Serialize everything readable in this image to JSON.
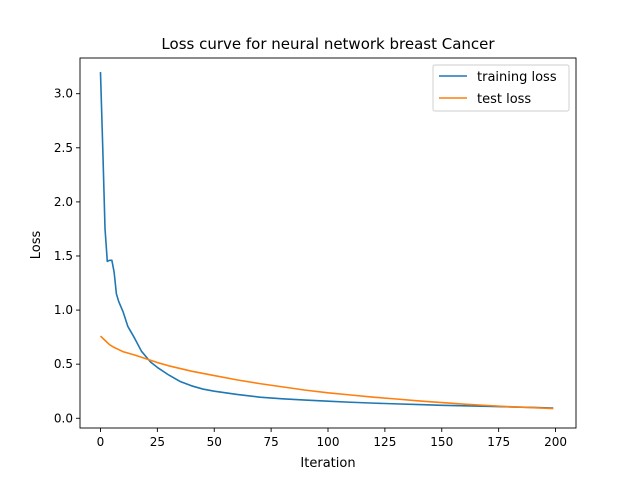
{
  "chart_data": {
    "type": "line",
    "title": "Loss curve for neural network breast Cancer",
    "xlabel": "Iteration",
    "ylabel": "Loss",
    "xlim": [
      -9,
      209
    ],
    "ylim": [
      -0.09,
      3.33
    ],
    "xticks": [
      0,
      25,
      50,
      75,
      100,
      125,
      150,
      175,
      200
    ],
    "yticks": [
      0.0,
      0.5,
      1.0,
      1.5,
      2.0,
      2.5,
      3.0
    ],
    "grid": false,
    "legend_position": "top-right",
    "series": [
      {
        "name": "training loss",
        "color": "#1f77b4",
        "x": [
          0,
          1,
          2,
          3,
          4,
          5,
          6,
          7,
          8,
          10,
          12,
          15,
          18,
          20,
          22,
          25,
          30,
          35,
          40,
          45,
          50,
          60,
          70,
          80,
          90,
          100,
          110,
          120,
          130,
          140,
          150,
          160,
          170,
          180,
          190,
          199
        ],
        "y": [
          3.2,
          2.5,
          1.75,
          1.45,
          1.46,
          1.46,
          1.35,
          1.15,
          1.08,
          0.98,
          0.85,
          0.74,
          0.62,
          0.57,
          0.52,
          0.47,
          0.4,
          0.34,
          0.3,
          0.27,
          0.25,
          0.22,
          0.195,
          0.18,
          0.168,
          0.158,
          0.148,
          0.14,
          0.133,
          0.127,
          0.12,
          0.115,
          0.11,
          0.105,
          0.1,
          0.095
        ]
      },
      {
        "name": "test loss",
        "color": "#ff7f0e",
        "x": [
          0,
          2,
          4,
          6,
          8,
          10,
          15,
          20,
          25,
          30,
          40,
          50,
          60,
          70,
          80,
          90,
          100,
          110,
          120,
          130,
          140,
          150,
          160,
          170,
          180,
          190,
          199
        ],
        "y": [
          0.76,
          0.72,
          0.68,
          0.655,
          0.635,
          0.615,
          0.585,
          0.55,
          0.515,
          0.485,
          0.435,
          0.395,
          0.355,
          0.32,
          0.29,
          0.26,
          0.235,
          0.215,
          0.195,
          0.178,
          0.16,
          0.145,
          0.13,
          0.118,
          0.107,
          0.098,
          0.09
        ]
      }
    ]
  }
}
